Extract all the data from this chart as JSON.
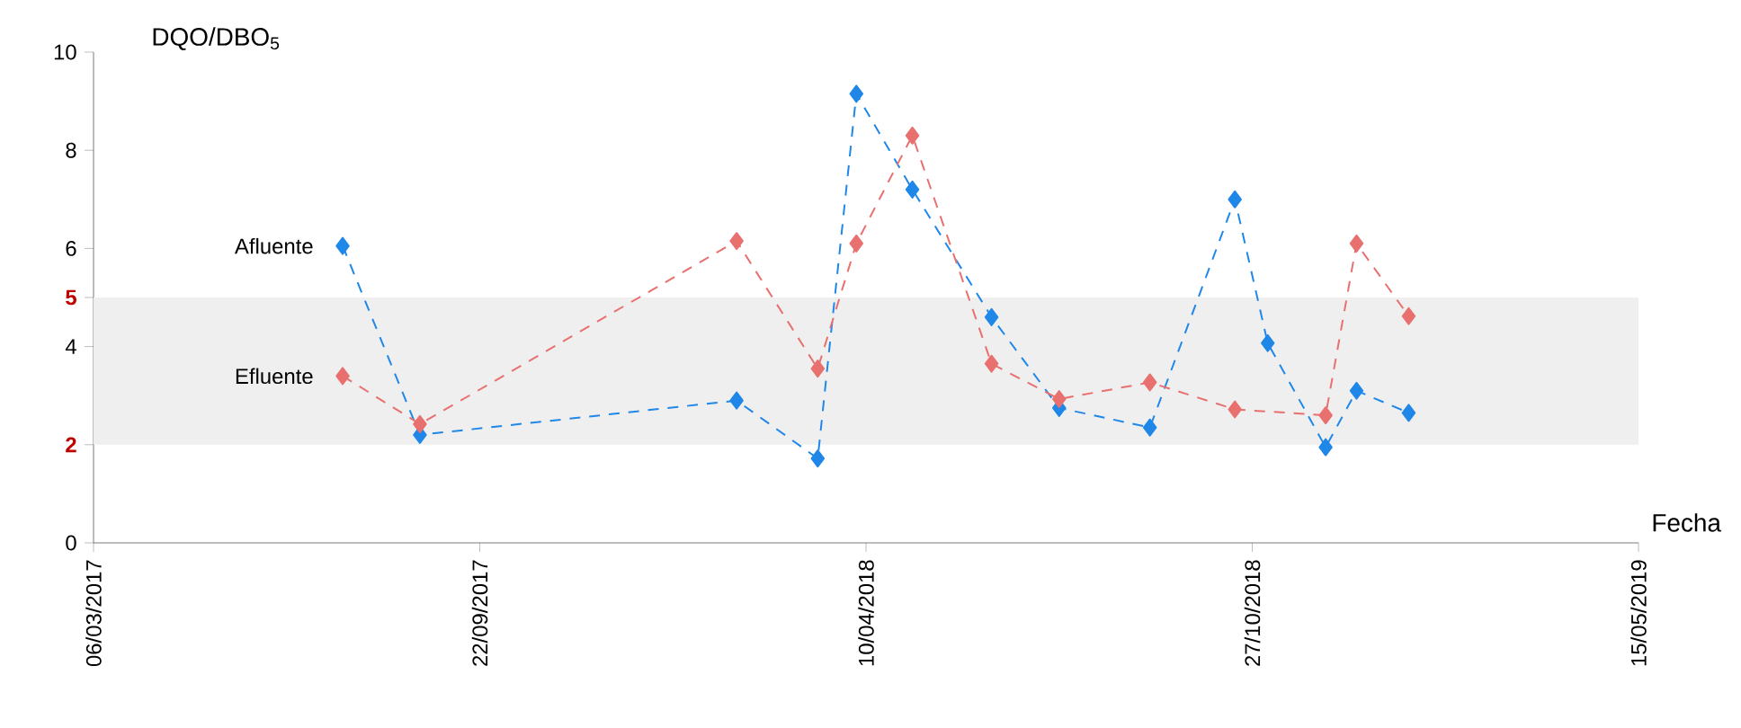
{
  "chart_data": {
    "type": "line",
    "xlabel": "Fecha",
    "ylabel": "DQO/DBO$_{5}$",
    "xlim": [
      "2017-03-06",
      "2019-05-15"
    ],
    "xticks": [
      {
        "value": "2017-03-06",
        "label": "06/03/2017"
      },
      {
        "value": "2017-09-22",
        "label": "22/09/2017"
      },
      {
        "value": "2018-04-10",
        "label": "10/04/2018"
      },
      {
        "value": "2018-10-27",
        "label": "27/10/2018"
      },
      {
        "value": "2019-05-15",
        "label": "15/05/2019"
      }
    ],
    "ylim": [
      0,
      10
    ],
    "yticks": [
      0,
      2,
      4,
      5,
      6,
      8,
      10
    ],
    "bands": [
      {
        "axis": "y",
        "from": 2,
        "to": 5,
        "color": "#efefef"
      }
    ],
    "marker": "diamond",
    "line_style": "dashed",
    "grid": false,
    "series": [
      {
        "name": "Afluente",
        "color": "#1f87e8",
        "x": [
          "2017-07-13",
          "2017-08-22",
          "2018-02-02",
          "2018-03-16",
          "2018-04-05",
          "2018-05-04",
          "2018-06-14",
          "2018-07-19",
          "2018-09-04",
          "2018-10-18",
          "2018-11-04",
          "2018-12-04",
          "2018-12-20",
          "2019-01-16"
        ],
        "values": [
          6.05,
          2.2,
          2.9,
          1.72,
          9.15,
          7.2,
          4.6,
          2.75,
          2.35,
          7.0,
          4.07,
          1.95,
          3.1,
          2.65
        ]
      },
      {
        "name": "Efluente",
        "color": "#e8706f",
        "x": [
          "2017-07-13",
          "2017-08-22",
          "2018-02-02",
          "2018-03-16",
          "2018-04-05",
          "2018-05-04",
          "2018-06-14",
          "2018-07-19",
          "2018-09-04",
          "2018-10-18",
          "2018-12-04",
          "2018-12-20",
          "2019-01-16"
        ],
        "values": [
          3.4,
          2.42,
          6.15,
          3.55,
          6.1,
          8.3,
          3.65,
          2.93,
          3.27,
          2.72,
          2.6,
          6.1,
          4.62
        ]
      }
    ]
  }
}
